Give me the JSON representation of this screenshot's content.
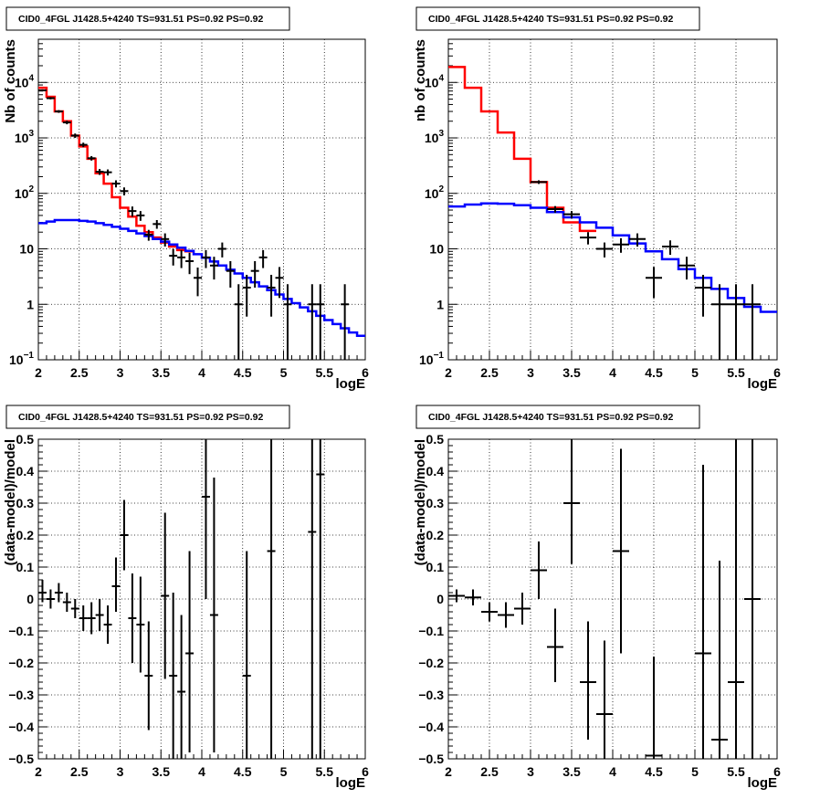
{
  "chart_data": [
    {
      "type": "histogram",
      "title": "CID0_4FGL J1428.5+4240 TS=931.51 PS=0.92 PS=0.92",
      "xlabel": "logE",
      "ylabel": "Nb of counts",
      "xlim": [
        2,
        6
      ],
      "ylim": [
        0.1,
        60000
      ],
      "log_y": true,
      "grid": true,
      "x_ticks": [
        "2",
        "2.5",
        "3",
        "3.5",
        "4",
        "4.5",
        "5",
        "5.5",
        "6"
      ],
      "y_ticks": [
        {
          "v": 0.1,
          "base": "10",
          "exp": "−1"
        },
        {
          "v": 1,
          "label": "1"
        },
        {
          "v": 10,
          "label": "10"
        },
        {
          "v": 100,
          "base": "10",
          "exp": "2"
        },
        {
          "v": 1000,
          "base": "10",
          "exp": "3"
        },
        {
          "v": 10000,
          "base": "10",
          "exp": "4"
        }
      ],
      "bin_width": 0.1,
      "series": [
        {
          "color": "#ff0000",
          "kind": "step",
          "x": [
            2.0,
            2.1,
            2.2,
            2.3,
            2.4,
            2.5,
            2.6,
            2.7,
            2.8,
            2.9,
            3.0,
            3.1,
            3.2,
            3.3,
            3.4,
            3.5,
            3.6,
            3.7,
            3.8
          ],
          "y": [
            8000,
            5500,
            3000,
            2000,
            1100,
            700,
            420,
            230,
            150,
            85,
            55,
            38,
            26,
            20,
            16,
            13,
            11,
            9.5,
            9
          ]
        },
        {
          "color": "#0000ff",
          "kind": "step",
          "x": [
            2.0,
            2.1,
            2.2,
            2.3,
            2.4,
            2.5,
            2.6,
            2.7,
            2.8,
            2.9,
            3.0,
            3.1,
            3.2,
            3.3,
            3.4,
            3.5,
            3.6,
            3.7,
            3.8,
            3.9,
            4.0,
            4.1,
            4.2,
            4.3,
            4.4,
            4.5,
            4.6,
            4.7,
            4.8,
            4.9,
            5.0,
            5.1,
            5.2,
            5.3,
            5.4,
            5.5,
            5.6,
            5.7,
            5.8,
            5.9
          ],
          "y": [
            29,
            31,
            33,
            33,
            33,
            32,
            31,
            29,
            27,
            25,
            23,
            21,
            19,
            17,
            15,
            13.5,
            12,
            10.5,
            9.2,
            8,
            6.9,
            5.9,
            5,
            4.2,
            3.6,
            3,
            2.5,
            2.1,
            1.8,
            1.5,
            1.25,
            1.05,
            0.88,
            0.75,
            0.62,
            0.52,
            0.44,
            0.37,
            0.31,
            0.27
          ]
        },
        {
          "color": "#000000",
          "kind": "points",
          "points": [
            {
              "x": 2.05,
              "y": 7200,
              "lo": 6900,
              "hi": 7500
            },
            {
              "x": 2.15,
              "y": 5200,
              "lo": 4950,
              "hi": 5450
            },
            {
              "x": 2.25,
              "y": 3000,
              "lo": 2830,
              "hi": 3170
            },
            {
              "x": 2.35,
              "y": 1900,
              "lo": 1760,
              "hi": 2040
            },
            {
              "x": 2.45,
              "y": 1100,
              "lo": 1000,
              "hi": 1200
            },
            {
              "x": 2.55,
              "y": 750,
              "lo": 680,
              "hi": 820
            },
            {
              "x": 2.65,
              "y": 430,
              "lo": 390,
              "hi": 470
            },
            {
              "x": 2.75,
              "y": 245,
              "lo": 215,
              "hi": 275
            },
            {
              "x": 2.85,
              "y": 240,
              "lo": 210,
              "hi": 270
            },
            {
              "x": 2.95,
              "y": 150,
              "lo": 128,
              "hi": 172
            },
            {
              "x": 3.05,
              "y": 110,
              "lo": 92,
              "hi": 128
            },
            {
              "x": 3.15,
              "y": 48,
              "lo": 38,
              "hi": 58
            },
            {
              "x": 3.25,
              "y": 40,
              "lo": 32,
              "hi": 48
            },
            {
              "x": 3.35,
              "y": 18,
              "lo": 14,
              "hi": 22
            },
            {
              "x": 3.45,
              "y": 28,
              "lo": 23,
              "hi": 33
            },
            {
              "x": 3.55,
              "y": 15,
              "lo": 11,
              "hi": 19
            },
            {
              "x": 3.65,
              "y": 7.5,
              "lo": 5,
              "hi": 10
            },
            {
              "x": 3.75,
              "y": 7,
              "lo": 4.5,
              "hi": 9.5
            },
            {
              "x": 3.85,
              "y": 6,
              "lo": 3.5,
              "hi": 8.5
            },
            {
              "x": 3.95,
              "y": 3,
              "lo": 1.4,
              "hi": 4.6
            },
            {
              "x": 4.05,
              "y": 7,
              "lo": 4.5,
              "hi": 9.5
            },
            {
              "x": 4.15,
              "y": 5,
              "lo": 2.8,
              "hi": 7.2
            },
            {
              "x": 4.25,
              "y": 10,
              "lo": 7,
              "hi": 13
            },
            {
              "x": 4.35,
              "y": 4,
              "lo": 2,
              "hi": 6
            },
            {
              "x": 4.45,
              "y": 1,
              "lo": 0.1,
              "hi": 2.3
            },
            {
              "x": 4.55,
              "y": 2,
              "lo": 0.6,
              "hi": 3.4
            },
            {
              "x": 4.65,
              "y": 4,
              "lo": 2,
              "hi": 6
            },
            {
              "x": 4.75,
              "y": 7,
              "lo": 4.5,
              "hi": 9.5
            },
            {
              "x": 4.85,
              "y": 2,
              "lo": 0.6,
              "hi": 3.4
            },
            {
              "x": 4.95,
              "y": 3,
              "lo": 1.3,
              "hi": 4.7
            },
            {
              "x": 5.05,
              "y": 1,
              "lo": 0.1,
              "hi": 2.3
            },
            {
              "x": 5.35,
              "y": 1,
              "lo": 0.1,
              "hi": 2.3
            },
            {
              "x": 5.45,
              "y": 1,
              "lo": 0.1,
              "hi": 2.3
            },
            {
              "x": 5.75,
              "y": 1,
              "lo": 0.1,
              "hi": 2.3
            }
          ]
        }
      ]
    },
    {
      "type": "histogram",
      "title": "CID0_4FGL J1428.5+4240 TS=931.51 PS=0.92 PS=0.92",
      "xlabel": "logE",
      "ylabel": "nb of counts",
      "xlim": [
        2,
        6
      ],
      "ylim": [
        0.1,
        60000
      ],
      "log_y": true,
      "grid": true,
      "x_ticks": [
        "2",
        "2.5",
        "3",
        "3.5",
        "4",
        "4.5",
        "5",
        "5.5",
        "6"
      ],
      "y_ticks": [
        {
          "v": 0.1,
          "base": "10",
          "exp": "−1"
        },
        {
          "v": 1,
          "label": "1"
        },
        {
          "v": 10,
          "label": "10"
        },
        {
          "v": 100,
          "base": "10",
          "exp": "2"
        },
        {
          "v": 1000,
          "base": "10",
          "exp": "3"
        },
        {
          "v": 10000,
          "base": "10",
          "exp": "4"
        }
      ],
      "bin_width": 0.2,
      "series": [
        {
          "color": "#ff0000",
          "kind": "step",
          "x": [
            2.0,
            2.2,
            2.4,
            2.6,
            2.8,
            3.0,
            3.2,
            3.4,
            3.6
          ],
          "y": [
            19000,
            8000,
            3000,
            1250,
            420,
            160,
            55,
            30,
            21
          ]
        },
        {
          "color": "#0000ff",
          "kind": "step",
          "x": [
            2.0,
            2.2,
            2.4,
            2.6,
            2.8,
            3.0,
            3.2,
            3.4,
            3.6,
            3.8,
            4.0,
            4.2,
            4.4,
            4.6,
            4.8,
            5.0,
            5.2,
            5.4,
            5.6,
            5.8
          ],
          "y": [
            58,
            63,
            66,
            65,
            61,
            55,
            46,
            37,
            30,
            24,
            17.5,
            12.5,
            9,
            6.5,
            4.3,
            3,
            1.9,
            1.3,
            0.9,
            0.73
          ]
        },
        {
          "color": "#000000",
          "kind": "points",
          "points": [
            {
              "x": 3.1,
              "y": 160,
              "lo": 148,
              "hi": 172
            },
            {
              "x": 3.3,
              "y": 52,
              "lo": 45,
              "hi": 59
            },
            {
              "x": 3.5,
              "y": 42,
              "lo": 36,
              "hi": 48
            },
            {
              "x": 3.7,
              "y": 16,
              "lo": 12,
              "hi": 20
            },
            {
              "x": 3.9,
              "y": 10,
              "lo": 7,
              "hi": 13
            },
            {
              "x": 4.1,
              "y": 12,
              "lo": 8.5,
              "hi": 15.5
            },
            {
              "x": 4.3,
              "y": 15,
              "lo": 11,
              "hi": 19
            },
            {
              "x": 4.5,
              "y": 3,
              "lo": 1.3,
              "hi": 4.7
            },
            {
              "x": 4.7,
              "y": 11,
              "lo": 7.8,
              "hi": 14.2
            },
            {
              "x": 4.9,
              "y": 5,
              "lo": 2.8,
              "hi": 7.2
            },
            {
              "x": 5.1,
              "y": 2,
              "lo": 0.6,
              "hi": 3.4
            },
            {
              "x": 5.3,
              "y": 1,
              "lo": 0.1,
              "hi": 2.3
            },
            {
              "x": 5.5,
              "y": 1,
              "lo": 0.1,
              "hi": 2.3
            },
            {
              "x": 5.7,
              "y": 1,
              "lo": 0.1,
              "hi": 2.3
            }
          ]
        }
      ]
    },
    {
      "type": "scatter",
      "title": "CID0_4FGL J1428.5+4240 TS=931.51 PS=0.92 PS=0.92",
      "xlabel": "logE",
      "ylabel": "(data-model)/model",
      "xlim": [
        2,
        6
      ],
      "ylim": [
        -0.5,
        0.5
      ],
      "log_y": false,
      "grid": true,
      "x_ticks": [
        "2",
        "2.5",
        "3",
        "3.5",
        "4",
        "4.5",
        "5",
        "5.5",
        "6"
      ],
      "y_ticks": [
        {
          "v": -0.5,
          "label": "−0.5"
        },
        {
          "v": -0.4,
          "label": "−0.4"
        },
        {
          "v": -0.3,
          "label": "−0.3"
        },
        {
          "v": -0.2,
          "label": "−0.2"
        },
        {
          "v": -0.1,
          "label": "−0.1"
        },
        {
          "v": 0,
          "label": "0"
        },
        {
          "v": 0.1,
          "label": "0.1"
        },
        {
          "v": 0.2,
          "label": "0.2"
        },
        {
          "v": 0.3,
          "label": "0.3"
        },
        {
          "v": 0.4,
          "label": "0.4"
        },
        {
          "v": 0.5,
          "label": "0.5"
        }
      ],
      "bin_width": 0.1,
      "series": [
        {
          "color": "#000000",
          "kind": "points",
          "points": [
            {
              "x": 2.05,
              "y": 0.02,
              "lo": -0.01,
              "hi": 0.06
            },
            {
              "x": 2.15,
              "y": 0.0,
              "lo": -0.03,
              "hi": 0.03
            },
            {
              "x": 2.25,
              "y": 0.02,
              "lo": -0.01,
              "hi": 0.05
            },
            {
              "x": 2.35,
              "y": -0.01,
              "lo": -0.04,
              "hi": 0.02
            },
            {
              "x": 2.45,
              "y": -0.03,
              "lo": -0.06,
              "hi": 0.0
            },
            {
              "x": 2.55,
              "y": -0.06,
              "lo": -0.1,
              "hi": -0.02
            },
            {
              "x": 2.65,
              "y": -0.06,
              "lo": -0.11,
              "hi": -0.01
            },
            {
              "x": 2.75,
              "y": -0.05,
              "lo": -0.1,
              "hi": 0.0
            },
            {
              "x": 2.85,
              "y": -0.08,
              "lo": -0.14,
              "hi": -0.02
            },
            {
              "x": 2.95,
              "y": 0.04,
              "lo": -0.04,
              "hi": 0.13
            },
            {
              "x": 3.05,
              "y": 0.2,
              "lo": 0.09,
              "hi": 0.31
            },
            {
              "x": 3.15,
              "y": -0.06,
              "lo": -0.2,
              "hi": 0.08
            },
            {
              "x": 3.25,
              "y": -0.08,
              "lo": -0.23,
              "hi": 0.07
            },
            {
              "x": 3.35,
              "y": -0.24,
              "lo": -0.41,
              "hi": -0.07
            },
            {
              "x": 3.55,
              "y": 0.01,
              "lo": -0.25,
              "hi": 0.27
            },
            {
              "x": 3.65,
              "y": -0.24,
              "lo": -0.5,
              "hi": 0.02
            },
            {
              "x": 3.75,
              "y": -0.29,
              "lo": -0.5,
              "hi": -0.05
            },
            {
              "x": 3.85,
              "y": -0.17,
              "lo": -0.48,
              "hi": 0.15
            },
            {
              "x": 4.05,
              "y": 0.32,
              "lo": 0.0,
              "hi": 0.5
            },
            {
              "x": 4.15,
              "y": -0.05,
              "lo": -0.48,
              "hi": 0.38
            },
            {
              "x": 4.55,
              "y": -0.24,
              "lo": -0.5,
              "hi": 0.15
            },
            {
              "x": 4.85,
              "y": 0.15,
              "lo": -0.5,
              "hi": 0.5
            },
            {
              "x": 5.35,
              "y": 0.21,
              "lo": -0.5,
              "hi": 0.5
            },
            {
              "x": 5.45,
              "y": 0.39,
              "lo": -0.5,
              "hi": 0.5
            }
          ]
        }
      ]
    },
    {
      "type": "scatter",
      "title": "CID0_4FGL J1428.5+4240 TS=931.51 PS=0.92 PS=0.92",
      "xlabel": "logE",
      "ylabel": "(data-model)/model",
      "xlim": [
        2,
        6
      ],
      "ylim": [
        -0.5,
        0.5
      ],
      "log_y": false,
      "grid": true,
      "x_ticks": [
        "2",
        "2.5",
        "3",
        "3.5",
        "4",
        "4.5",
        "5",
        "5.5",
        "6"
      ],
      "y_ticks": [
        {
          "v": -0.5,
          "label": "−0.5"
        },
        {
          "v": -0.4,
          "label": "−0.4"
        },
        {
          "v": -0.3,
          "label": "−0.3"
        },
        {
          "v": -0.2,
          "label": "−0.2"
        },
        {
          "v": -0.1,
          "label": "−0.1"
        },
        {
          "v": 0,
          "label": "0"
        },
        {
          "v": 0.1,
          "label": "0.1"
        },
        {
          "v": 0.2,
          "label": "0.2"
        },
        {
          "v": 0.3,
          "label": "0.3"
        },
        {
          "v": 0.4,
          "label": "0.4"
        },
        {
          "v": 0.5,
          "label": "0.5"
        }
      ],
      "bin_width": 0.2,
      "series": [
        {
          "color": "#000000",
          "kind": "points",
          "points": [
            {
              "x": 2.1,
              "y": 0.01,
              "lo": -0.01,
              "hi": 0.03
            },
            {
              "x": 2.3,
              "y": 0.005,
              "lo": -0.02,
              "hi": 0.03
            },
            {
              "x": 2.5,
              "y": -0.04,
              "lo": -0.07,
              "hi": -0.01
            },
            {
              "x": 2.7,
              "y": -0.05,
              "lo": -0.09,
              "hi": -0.01
            },
            {
              "x": 2.9,
              "y": -0.03,
              "lo": -0.08,
              "hi": 0.02
            },
            {
              "x": 3.1,
              "y": 0.09,
              "lo": 0.0,
              "hi": 0.18
            },
            {
              "x": 3.3,
              "y": -0.15,
              "lo": -0.26,
              "hi": -0.03
            },
            {
              "x": 3.5,
              "y": 0.3,
              "lo": 0.11,
              "hi": 0.5
            },
            {
              "x": 3.7,
              "y": -0.26,
              "lo": -0.44,
              "hi": -0.07
            },
            {
              "x": 3.9,
              "y": -0.36,
              "lo": -0.5,
              "hi": -0.13
            },
            {
              "x": 4.1,
              "y": 0.15,
              "lo": -0.17,
              "hi": 0.47
            },
            {
              "x": 4.5,
              "y": -0.49,
              "lo": -0.5,
              "hi": -0.18
            },
            {
              "x": 5.1,
              "y": -0.17,
              "lo": -0.5,
              "hi": 0.42
            },
            {
              "x": 5.3,
              "y": -0.44,
              "lo": -0.5,
              "hi": 0.12
            },
            {
              "x": 5.5,
              "y": -0.26,
              "lo": -0.5,
              "hi": 0.5
            },
            {
              "x": 5.7,
              "y": 0.0,
              "lo": -0.5,
              "hi": 0.5
            }
          ]
        }
      ]
    }
  ]
}
